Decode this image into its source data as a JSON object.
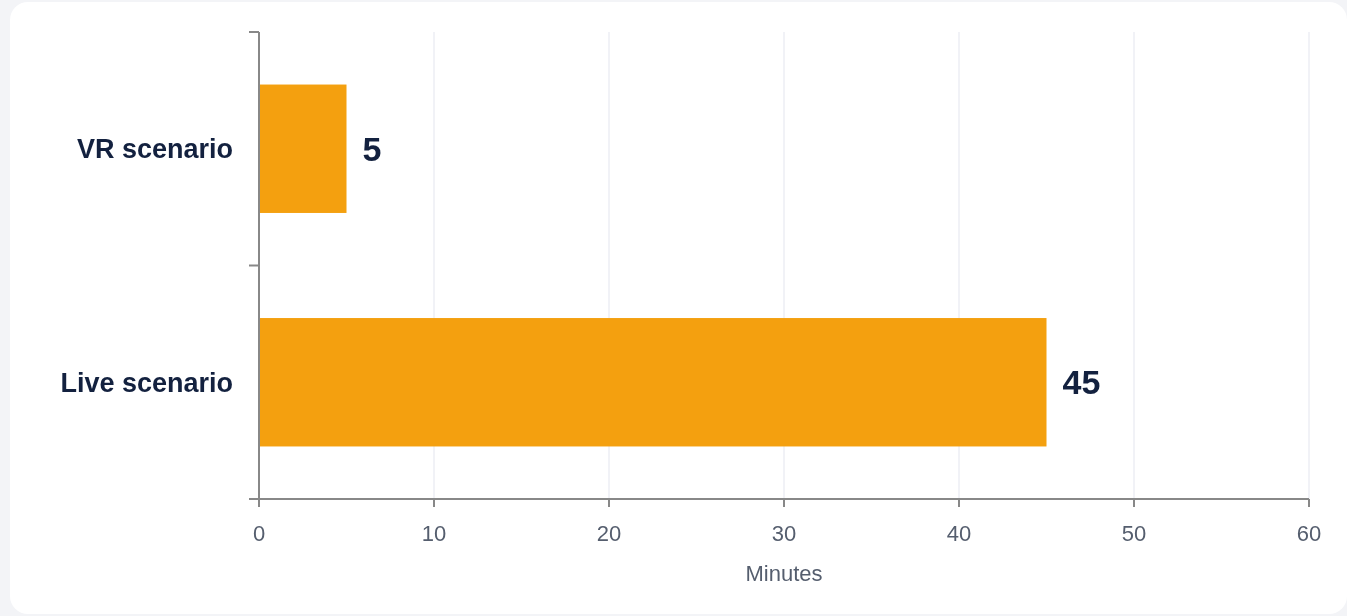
{
  "chart_data": {
    "type": "bar",
    "orientation": "horizontal",
    "categories": [
      "VR scenario",
      "Live scenario"
    ],
    "values": [
      5,
      45
    ],
    "color": "#f4a00f",
    "xlabel": "Minutes",
    "xlim": [
      0,
      60
    ],
    "xticks": [
      0,
      10,
      20,
      30,
      40,
      50,
      60
    ],
    "grid": "x",
    "data_labels": true
  }
}
